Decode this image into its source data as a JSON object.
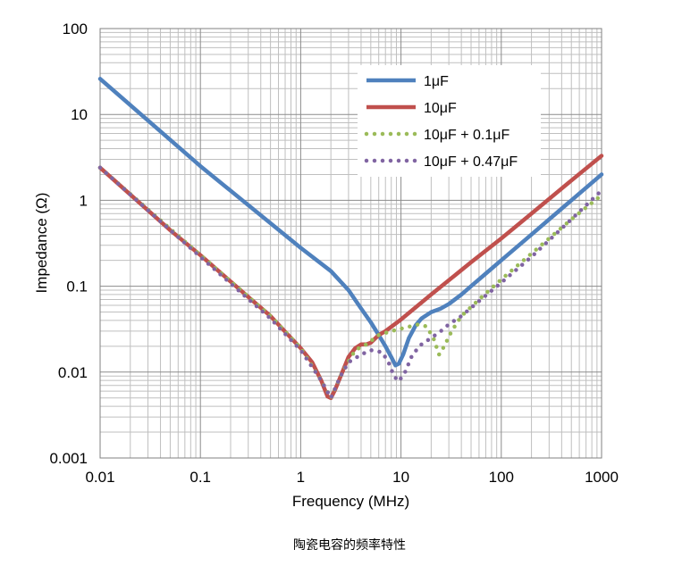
{
  "caption": "陶瓷电容的频率特性",
  "chart_data": {
    "type": "line",
    "xscale": "log",
    "yscale": "log",
    "xlabel": "Frequency (MHz)",
    "ylabel": "Impedance (Ω)",
    "xlim": [
      0.01,
      1000
    ],
    "ylim": [
      0.001,
      100
    ],
    "x_ticks": [
      "0.01",
      "0.1",
      "1",
      "10",
      "100",
      "1000"
    ],
    "y_ticks": [
      "0.001",
      "0.01",
      "0.1",
      "1",
      "10",
      "100"
    ],
    "grid": true,
    "legend_position": "top-right",
    "series": [
      {
        "name": "1μF",
        "color": "#4f81bd",
        "style": "solid",
        "points": [
          [
            0.01,
            26
          ],
          [
            0.1,
            2.5
          ],
          [
            1,
            0.28
          ],
          [
            2,
            0.15
          ],
          [
            3,
            0.09
          ],
          [
            4,
            0.055
          ],
          [
            5,
            0.038
          ],
          [
            6,
            0.027
          ],
          [
            7,
            0.02
          ],
          [
            8,
            0.015
          ],
          [
            8.8,
            0.012
          ],
          [
            9.5,
            0.0125
          ],
          [
            10.5,
            0.016
          ],
          [
            12,
            0.025
          ],
          [
            14,
            0.035
          ],
          [
            16,
            0.042
          ],
          [
            20,
            0.05
          ],
          [
            25,
            0.055
          ],
          [
            30,
            0.062
          ],
          [
            40,
            0.08
          ],
          [
            50,
            0.1
          ],
          [
            70,
            0.14
          ],
          [
            100,
            0.2
          ],
          [
            200,
            0.4
          ],
          [
            500,
            1.0
          ],
          [
            1000,
            2.0
          ]
        ]
      },
      {
        "name": "10μF",
        "color": "#c0504d",
        "style": "solid",
        "points": [
          [
            0.01,
            2.4
          ],
          [
            0.05,
            0.45
          ],
          [
            0.1,
            0.23
          ],
          [
            0.3,
            0.075
          ],
          [
            0.5,
            0.045
          ],
          [
            0.8,
            0.025
          ],
          [
            1,
            0.019
          ],
          [
            1.3,
            0.013
          ],
          [
            1.6,
            0.008
          ],
          [
            1.85,
            0.0052
          ],
          [
            2.0,
            0.005
          ],
          [
            2.2,
            0.0062
          ],
          [
            2.6,
            0.01
          ],
          [
            3,
            0.015
          ],
          [
            3.5,
            0.019
          ],
          [
            4,
            0.021
          ],
          [
            4.5,
            0.021
          ],
          [
            5,
            0.022
          ],
          [
            6,
            0.027
          ],
          [
            7,
            0.03
          ],
          [
            10,
            0.041
          ],
          [
            20,
            0.08
          ],
          [
            50,
            0.19
          ],
          [
            100,
            0.36
          ],
          [
            200,
            0.7
          ],
          [
            500,
            1.7
          ],
          [
            1000,
            3.3
          ]
        ]
      },
      {
        "name": "10μF + 0.1μF",
        "color": "#9bbb59",
        "style": "dotted",
        "points": [
          [
            0.01,
            2.4
          ],
          [
            0.1,
            0.23
          ],
          [
            0.5,
            0.045
          ],
          [
            1,
            0.019
          ],
          [
            1.6,
            0.008
          ],
          [
            2,
            0.005
          ],
          [
            2.6,
            0.01
          ],
          [
            3.5,
            0.018
          ],
          [
            4.5,
            0.021
          ],
          [
            6,
            0.027
          ],
          [
            8,
            0.03
          ],
          [
            10,
            0.032
          ],
          [
            15,
            0.036
          ],
          [
            18,
            0.034
          ],
          [
            21,
            0.025
          ],
          [
            24,
            0.016
          ],
          [
            27,
            0.02
          ],
          [
            32,
            0.03
          ],
          [
            40,
            0.045
          ],
          [
            60,
            0.07
          ],
          [
            100,
            0.12
          ],
          [
            200,
            0.24
          ],
          [
            500,
            0.6
          ],
          [
            1000,
            1.15
          ]
        ]
      },
      {
        "name": "10μF + 0.47μF",
        "color": "#8064a2",
        "style": "dotted",
        "points": [
          [
            0.01,
            2.4
          ],
          [
            0.1,
            0.22
          ],
          [
            0.5,
            0.042
          ],
          [
            1,
            0.018
          ],
          [
            1.6,
            0.008
          ],
          [
            2,
            0.005
          ],
          [
            2.5,
            0.009
          ],
          [
            3,
            0.013
          ],
          [
            4,
            0.016
          ],
          [
            5,
            0.018
          ],
          [
            6.5,
            0.017
          ],
          [
            7.5,
            0.013
          ],
          [
            8.5,
            0.009
          ],
          [
            9.5,
            0.0078
          ],
          [
            11,
            0.01
          ],
          [
            13,
            0.016
          ],
          [
            16,
            0.021
          ],
          [
            20,
            0.025
          ],
          [
            25,
            0.03
          ],
          [
            30,
            0.036
          ],
          [
            40,
            0.045
          ],
          [
            60,
            0.067
          ],
          [
            100,
            0.11
          ],
          [
            200,
            0.22
          ],
          [
            500,
            0.6
          ],
          [
            1000,
            1.3
          ]
        ]
      }
    ]
  }
}
